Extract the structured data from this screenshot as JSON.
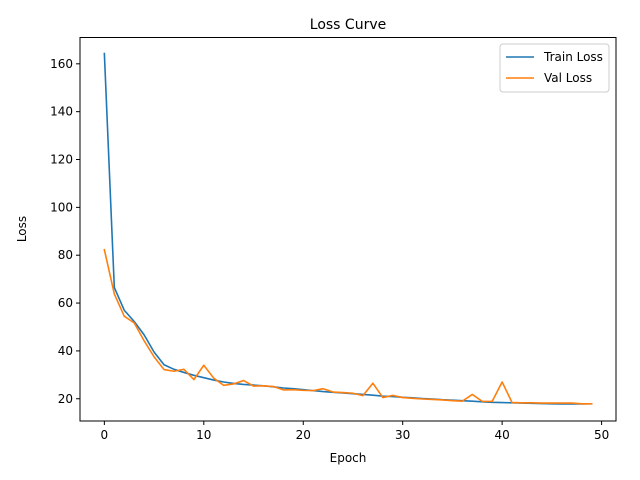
{
  "chart_data": {
    "type": "line",
    "title": "Loss Curve",
    "xlabel": "Epoch",
    "ylabel": "Loss",
    "xlim": [
      -2.45,
      51.45
    ],
    "ylim": [
      10.7,
      171.0
    ],
    "xticks": [
      0,
      10,
      20,
      30,
      40,
      50
    ],
    "yticks": [
      20,
      40,
      60,
      80,
      100,
      120,
      140,
      160
    ],
    "grid": false,
    "legend_position": "top-right",
    "x": [
      0,
      1,
      2,
      3,
      4,
      5,
      6,
      7,
      8,
      9,
      10,
      11,
      12,
      13,
      14,
      15,
      16,
      17,
      18,
      19,
      20,
      21,
      22,
      23,
      24,
      25,
      26,
      27,
      28,
      29,
      30,
      31,
      32,
      33,
      34,
      35,
      36,
      37,
      38,
      39,
      40,
      41,
      42,
      43,
      44,
      45,
      46,
      47,
      48,
      49
    ],
    "series": [
      {
        "name": "Train Loss",
        "color": "#1f77b4",
        "values": [
          164.3,
          66.5,
          57.0,
          52.3,
          46.7,
          39.5,
          34.2,
          32.3,
          31.0,
          29.8,
          28.8,
          27.8,
          27.0,
          26.4,
          26.0,
          25.7,
          25.4,
          25.0,
          24.5,
          24.2,
          23.8,
          23.4,
          23.0,
          22.7,
          22.4,
          22.1,
          21.8,
          21.5,
          21.1,
          20.9,
          20.6,
          20.4,
          20.1,
          19.9,
          19.6,
          19.4,
          19.2,
          19.0,
          18.7,
          18.5,
          18.4,
          18.3,
          18.2,
          18.1,
          18.0,
          17.9,
          17.8,
          17.8,
          17.8,
          17.9
        ]
      },
      {
        "name": "Val Loss",
        "color": "#ff7f0e",
        "values": [
          82.3,
          63.8,
          54.5,
          51.7,
          44.2,
          37.5,
          32.2,
          31.5,
          32.3,
          28.0,
          34.0,
          28.6,
          25.6,
          26.2,
          27.6,
          25.3,
          25.4,
          25.1,
          23.7,
          23.8,
          23.5,
          23.4,
          24.2,
          22.8,
          22.6,
          22.3,
          21.3,
          26.5,
          20.5,
          21.4,
          20.5,
          20.2,
          19.9,
          19.7,
          19.5,
          19.2,
          19.0,
          21.8,
          18.9,
          18.9,
          27.0,
          18.4,
          18.3,
          18.3,
          18.2,
          18.2,
          18.2,
          18.2,
          17.9,
          17.9
        ]
      }
    ]
  }
}
